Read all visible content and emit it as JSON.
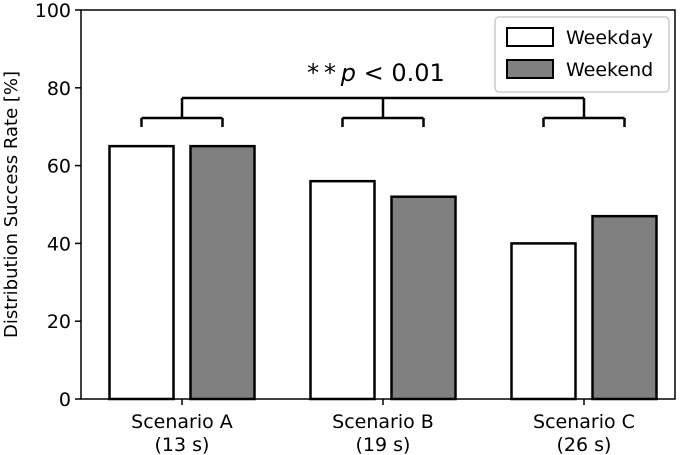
{
  "chart_data": {
    "type": "bar",
    "categories": [
      [
        "Scenario A",
        "(13 s)"
      ],
      [
        "Scenario B",
        "(19 s)"
      ],
      [
        "Scenario C",
        "(26 s)"
      ]
    ],
    "series": [
      {
        "name": "Weekday",
        "values": [
          65,
          56,
          40
        ],
        "color": "#ffffff"
      },
      {
        "name": "Weekend",
        "values": [
          65,
          52,
          47
        ],
        "color": "#808080"
      }
    ],
    "ylabel": "Distribution Success Rate [%]",
    "ylim": [
      0,
      100
    ],
    "yticks": [
      0,
      20,
      40,
      60,
      80,
      100
    ],
    "legend_position": "top-right",
    "grid": false,
    "annotation": {
      "text": "**p < 0.01",
      "type": "significance-bracket",
      "groups": [
        "Scenario A",
        "Scenario B",
        "Scenario C"
      ]
    }
  }
}
